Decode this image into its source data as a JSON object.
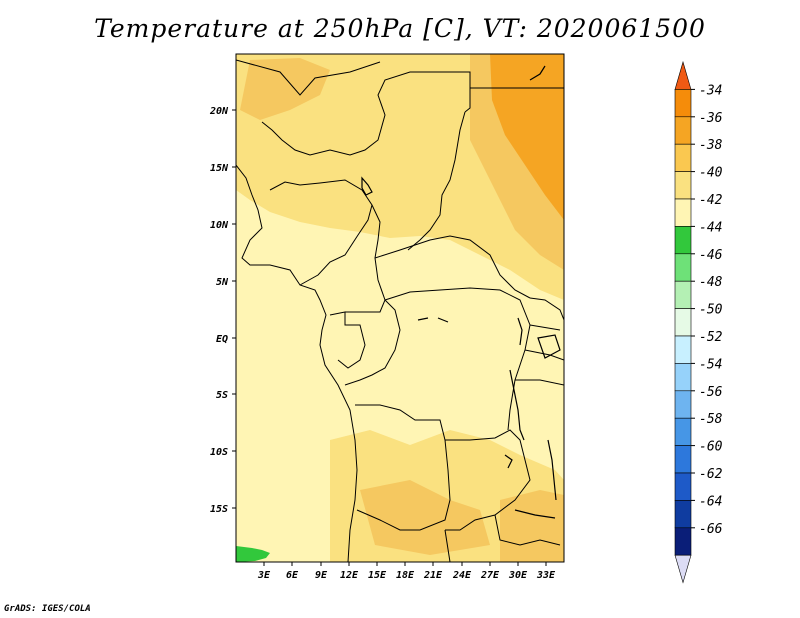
{
  "title": "Temperature at 250hPa [C], VT: 2020061500",
  "credit": "GrADS: IGES/COLA",
  "map": {
    "lon_labels": [
      "3E",
      "6E",
      "9E",
      "12E",
      "15E",
      "18E",
      "21E",
      "24E",
      "27E",
      "30E",
      "33E"
    ],
    "lat_labels": [
      "20N",
      "15N",
      "10N",
      "5N",
      "EQ",
      "5S",
      "10S",
      "15S"
    ]
  },
  "colorbar": {
    "levels": [
      "-34",
      "-36",
      "-38",
      "-40",
      "-42",
      "-44",
      "-46",
      "-48",
      "-50",
      "-52",
      "-54",
      "-56",
      "-58",
      "-60",
      "-62",
      "-64",
      "-66"
    ],
    "colors": [
      "#f05a14",
      "#f58c0a",
      "#f5a523",
      "#fac850",
      "#fae180",
      "#fff5b4",
      "#32c83c",
      "#6ee178",
      "#b4f0b4",
      "#e6fae6",
      "#c8f0ff",
      "#96d2fa",
      "#6eb4f0",
      "#4696e6",
      "#2d78dc",
      "#1e5ac8",
      "#0f3ca0",
      "#0a1e78",
      "#dcdcf5"
    ]
  },
  "colors": {
    "light_yellow": "#fff5b4",
    "pale_orange": "#fae180",
    "mid_orange": "#f5c860",
    "dark_orange": "#f5a523",
    "green": "#32c83c"
  }
}
